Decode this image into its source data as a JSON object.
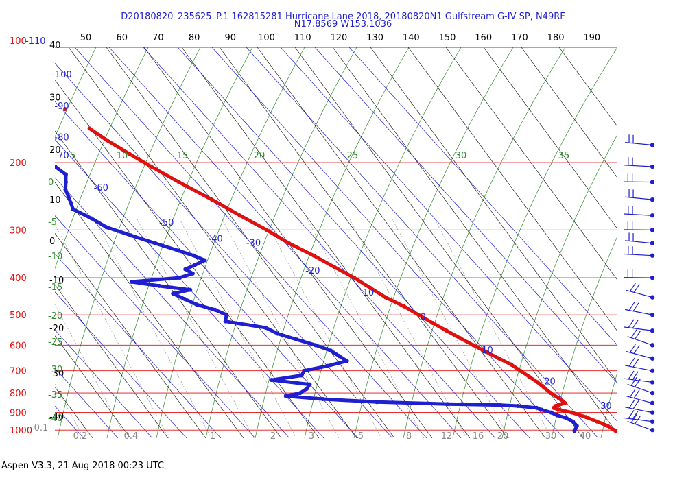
{
  "chart_data": {
    "type": "scatter",
    "chart_kind": "skew-t log-p sounding",
    "title_line1": "D20180820_235625_P.1 162815281 Hurricane Lane 2018, 20180820N1 Gulfstream G-IV SP, N49RF",
    "title_line2": "N17.8569 W153.1036",
    "footer": "Aspen V3.3, 21 Aug 2018  00:23 UTC",
    "pressure_levels": [
      100,
      200,
      300,
      400,
      500,
      600,
      700,
      800,
      900,
      1000
    ],
    "pressure_axis_label_top": "100",
    "top_axis_ticks_fahrenheit": [
      40,
      50,
      60,
      70,
      80,
      90,
      100,
      110,
      120,
      130,
      140,
      150,
      160,
      170,
      180,
      190
    ],
    "top_axis_blue_label": "-110",
    "left_axis_ticks_celsius": [
      {
        "label": "40",
        "p": 100
      },
      {
        "label": "30",
        "p": 135
      },
      {
        "label": "20",
        "p": 185
      },
      {
        "label": "10",
        "p": 250
      },
      {
        "label": "0",
        "p": 320
      },
      {
        "label": "-10",
        "p": 405
      },
      {
        "label": "-20",
        "p": 540
      },
      {
        "label": "-30",
        "p": 710
      },
      {
        "label": "-40",
        "p": 920
      }
    ],
    "isotherm_labels_blue": [
      {
        "label": "-100",
        "t": -100,
        "p": 120
      },
      {
        "label": "-90",
        "t": -90,
        "p": 145
      },
      {
        "label": "-80",
        "t": -80,
        "p": 175
      },
      {
        "label": "-70",
        "t": -70,
        "p": 195
      },
      {
        "label": "-60",
        "t": -60,
        "p": 237
      },
      {
        "label": "-50",
        "t": -50,
        "p": 292
      },
      {
        "label": "-40",
        "t": -40,
        "p": 322
      },
      {
        "label": "-30",
        "t": -30,
        "p": 330
      },
      {
        "label": "-20",
        "t": -20,
        "p": 390
      },
      {
        "label": "-10",
        "t": -10,
        "p": 445
      },
      {
        "label": "0",
        "t": 0,
        "p": 515
      },
      {
        "label": "10",
        "t": 10,
        "p": 630
      },
      {
        "label": "20",
        "t": 20,
        "p": 760
      },
      {
        "label": "30",
        "t": 30,
        "p": 880
      }
    ],
    "theta_e_labels_green": [
      "5",
      "10",
      "15",
      "20",
      "25",
      "30",
      "35"
    ],
    "left_green_labels": [
      "0",
      "-5",
      "-10",
      "-15",
      "-20",
      "-25",
      "-30",
      "-35",
      "-40"
    ],
    "mixing_ratio_labels_gray": [
      "0.1",
      "0.2",
      "0.4",
      "1",
      "2",
      "3",
      "5",
      "8",
      "12",
      "16",
      "20",
      "30",
      "40"
    ],
    "series": [
      {
        "role": "temperature",
        "color": "#e01010",
        "points": [
          {
            "p": 163,
            "t": -47
          },
          {
            "p": 175,
            "t": -45
          },
          {
            "p": 190,
            "t": -42
          },
          {
            "p": 205,
            "t": -39
          },
          {
            "p": 225,
            "t": -35
          },
          {
            "p": 250,
            "t": -30
          },
          {
            "p": 275,
            "t": -26
          },
          {
            "p": 300,
            "t": -22
          },
          {
            "p": 325,
            "t": -19
          },
          {
            "p": 350,
            "t": -15
          },
          {
            "p": 375,
            "t": -12
          },
          {
            "p": 400,
            "t": -9
          },
          {
            "p": 425,
            "t": -7
          },
          {
            "p": 450,
            "t": -5
          },
          {
            "p": 475,
            "t": -2
          },
          {
            "p": 500,
            "t": 0
          },
          {
            "p": 525,
            "t": 2
          },
          {
            "p": 550,
            "t": 4
          },
          {
            "p": 575,
            "t": 6
          },
          {
            "p": 600,
            "t": 8
          },
          {
            "p": 625,
            "t": 10
          },
          {
            "p": 650,
            "t": 12
          },
          {
            "p": 675,
            "t": 14
          },
          {
            "p": 700,
            "t": 15
          },
          {
            "p": 725,
            "t": 16
          },
          {
            "p": 750,
            "t": 17
          },
          {
            "p": 775,
            "t": 17.5
          },
          {
            "p": 800,
            "t": 18
          },
          {
            "p": 825,
            "t": 19
          },
          {
            "p": 850,
            "t": 19.5
          },
          {
            "p": 865,
            "t": 16
          },
          {
            "p": 875,
            "t": 15
          },
          {
            "p": 885,
            "t": 16
          },
          {
            "p": 900,
            "t": 19
          },
          {
            "p": 925,
            "t": 22
          },
          {
            "p": 950,
            "t": 24
          },
          {
            "p": 975,
            "t": 26
          },
          {
            "p": 1005,
            "t": 27
          }
        ],
        "isolated_point": {
          "p": 145,
          "t": -49
        }
      },
      {
        "role": "dewpoint",
        "color": "#1f1fd0",
        "points": [
          {
            "p": 190,
            "t": -72
          },
          {
            "p": 205,
            "t": -67
          },
          {
            "p": 215,
            "t": -66
          },
          {
            "p": 225,
            "t": -68
          },
          {
            "p": 235,
            "t": -70
          },
          {
            "p": 245,
            "t": -71
          },
          {
            "p": 255,
            "t": -72
          },
          {
            "p": 265,
            "t": -73
          },
          {
            "p": 280,
            "t": -70
          },
          {
            "p": 295,
            "t": -68
          },
          {
            "p": 310,
            "t": -63
          },
          {
            "p": 325,
            "t": -58
          },
          {
            "p": 340,
            "t": -53
          },
          {
            "p": 350,
            "t": -50
          },
          {
            "p": 360,
            "t": -48
          },
          {
            "p": 370,
            "t": -52
          },
          {
            "p": 380,
            "t": -56
          },
          {
            "p": 390,
            "t": -55
          },
          {
            "p": 400,
            "t": -60
          },
          {
            "p": 410,
            "t": -75
          },
          {
            "p": 420,
            "t": -68
          },
          {
            "p": 430,
            "t": -60
          },
          {
            "p": 440,
            "t": -66
          },
          {
            "p": 455,
            "t": -64
          },
          {
            "p": 470,
            "t": -62
          },
          {
            "p": 485,
            "t": -58
          },
          {
            "p": 500,
            "t": -56
          },
          {
            "p": 520,
            "t": -58
          },
          {
            "p": 540,
            "t": -48
          },
          {
            "p": 560,
            "t": -46
          },
          {
            "p": 580,
            "t": -42
          },
          {
            "p": 600,
            "t": -38
          },
          {
            "p": 620,
            "t": -35
          },
          {
            "p": 640,
            "t": -34
          },
          {
            "p": 660,
            "t": -33
          },
          {
            "p": 680,
            "t": -40
          },
          {
            "p": 700,
            "t": -48
          },
          {
            "p": 720,
            "t": -50
          },
          {
            "p": 740,
            "t": -60
          },
          {
            "p": 760,
            "t": -50
          },
          {
            "p": 780,
            "t": -52
          },
          {
            "p": 800,
            "t": -55
          },
          {
            "p": 815,
            "t": -60
          },
          {
            "p": 830,
            "t": -50
          },
          {
            "p": 845,
            "t": -35
          },
          {
            "p": 855,
            "t": -15
          },
          {
            "p": 860,
            "t": 0
          },
          {
            "p": 865,
            "t": 5
          },
          {
            "p": 875,
            "t": 10
          },
          {
            "p": 885,
            "t": 11
          },
          {
            "p": 900,
            "t": 13
          },
          {
            "p": 915,
            "t": 14
          },
          {
            "p": 930,
            "t": 16
          },
          {
            "p": 950,
            "t": 17
          },
          {
            "p": 975,
            "t": 17
          },
          {
            "p": 1005,
            "t": 15
          }
        ]
      }
    ],
    "wind_barb_levels": [
      180,
      205,
      225,
      250,
      275,
      300,
      325,
      350,
      400,
      450,
      500,
      550,
      600,
      650,
      700,
      750,
      800,
      850,
      900,
      950,
      1000
    ],
    "grid": true
  }
}
